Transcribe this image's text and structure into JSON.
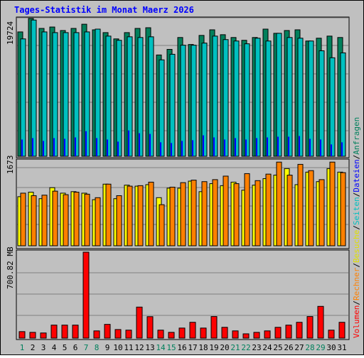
{
  "title": "Tages-Statistik im Monat Maerz 2026",
  "colors": {
    "background": "#c0c0c0",
    "grid": "#808080",
    "title": "#0000ff",
    "weekday": "#000000",
    "weekend": "#00805c",
    "anfragen": "#00805c",
    "dateien": "#0000ff",
    "seiten": "#00c0c0",
    "besuche": "#ffff00",
    "rechner": "#ff8000",
    "volumen": "#ff0000"
  },
  "legend": {
    "anfragen": "Anfragen",
    "dateien": "Dateien",
    "seiten": "Seiten",
    "besuche": "Besuche",
    "rechner": "Rechner",
    "volumen": "Volumen",
    "sep": "/"
  },
  "axis": {
    "top_label": "19724",
    "mid_label": "1673",
    "bot_label": "700.82 MB"
  },
  "weekend_days": [
    1,
    7,
    8,
    14,
    15,
    21,
    22,
    28,
    29
  ],
  "chart_data": [
    {
      "type": "bar",
      "title": "",
      "categories": [
        "1",
        "2",
        "3",
        "4",
        "5",
        "6",
        "7",
        "8",
        "9",
        "10",
        "11",
        "12",
        "13",
        "14",
        "15",
        "16",
        "17",
        "18",
        "19",
        "20",
        "21",
        "22",
        "23",
        "24",
        "25",
        "26",
        "27",
        "28",
        "29",
        "30",
        "31"
      ],
      "ylim": [
        0,
        19724
      ],
      "series": [
        {
          "name": "Anfragen",
          "values": [
            17800,
            19724,
            18300,
            18500,
            18000,
            18300,
            18900,
            18100,
            17700,
            16800,
            17700,
            18300,
            18400,
            14500,
            15300,
            17000,
            16000,
            17300,
            18100,
            17400,
            17000,
            16600,
            17000,
            18200,
            17600,
            18000,
            18100,
            16500,
            16900,
            17200,
            17000
          ]
        },
        {
          "name": "Dateien",
          "values": [
            2400,
            2600,
            2200,
            2600,
            2500,
            2700,
            3600,
            2600,
            2400,
            2100,
            3700,
            3300,
            3200,
            2000,
            1900,
            2200,
            2300,
            3000,
            2700,
            2400,
            2600,
            2400,
            2600,
            2700,
            2800,
            2800,
            2900,
            2500,
            2400,
            1700,
            2000
          ]
        },
        {
          "name": "Seiten",
          "values": [
            16800,
            19500,
            17800,
            17700,
            17700,
            17700,
            17800,
            18200,
            17200,
            16600,
            17100,
            17000,
            17100,
            13800,
            14600,
            15900,
            15900,
            16200,
            17200,
            16700,
            16500,
            16100,
            16900,
            16500,
            17600,
            17000,
            16900,
            16500,
            15100,
            14100,
            14800
          ]
        }
      ]
    },
    {
      "type": "bar",
      "title": "",
      "categories": [
        "1",
        "2",
        "3",
        "4",
        "5",
        "6",
        "7",
        "8",
        "9",
        "10",
        "11",
        "12",
        "13",
        "14",
        "15",
        "16",
        "17",
        "18",
        "19",
        "20",
        "21",
        "22",
        "23",
        "24",
        "25",
        "26",
        "27",
        "28",
        "29",
        "30",
        "31"
      ],
      "ylim": [
        0,
        1673
      ],
      "series": [
        {
          "name": "Besuche",
          "values": [
            980,
            1070,
            940,
            1160,
            1050,
            1080,
            1050,
            920,
            1230,
            940,
            1210,
            1190,
            1220,
            960,
            1150,
            1150,
            1290,
            1080,
            1240,
            1200,
            1270,
            1110,
            1210,
            1340,
            1410,
            1540,
            1220,
            1470,
            1280,
            1540,
            1470
          ]
        },
        {
          "name": "Rechner",
          "values": [
            1050,
            1000,
            1010,
            1090,
            1020,
            1070,
            1030,
            960,
            1230,
            1000,
            1190,
            1200,
            1270,
            820,
            1170,
            1260,
            1310,
            1280,
            1320,
            1390,
            1240,
            1440,
            1300,
            1430,
            1670,
            1410,
            1625,
            1500,
            1320,
            1670,
            1460
          ]
        }
      ]
    },
    {
      "type": "bar",
      "title": "",
      "categories": [
        "1",
        "2",
        "3",
        "4",
        "5",
        "6",
        "7",
        "8",
        "9",
        "10",
        "11",
        "12",
        "13",
        "14",
        "15",
        "16",
        "17",
        "18",
        "19",
        "20",
        "21",
        "22",
        "23",
        "24",
        "25",
        "26",
        "27",
        "28",
        "29",
        "30",
        "31"
      ],
      "ylabel": "",
      "ylim": [
        0,
        700.82
      ],
      "series": [
        {
          "name": "Volumen",
          "values": [
            53,
            47,
            42,
            106,
            106,
            106,
            700.82,
            59,
            112,
            70,
            65,
            253,
            175,
            65,
            47,
            82,
            129,
            82,
            176,
            88,
            59,
            35,
            47,
            59,
            88,
            106,
            129,
            176,
            259,
            65,
            129
          ]
        }
      ]
    }
  ]
}
